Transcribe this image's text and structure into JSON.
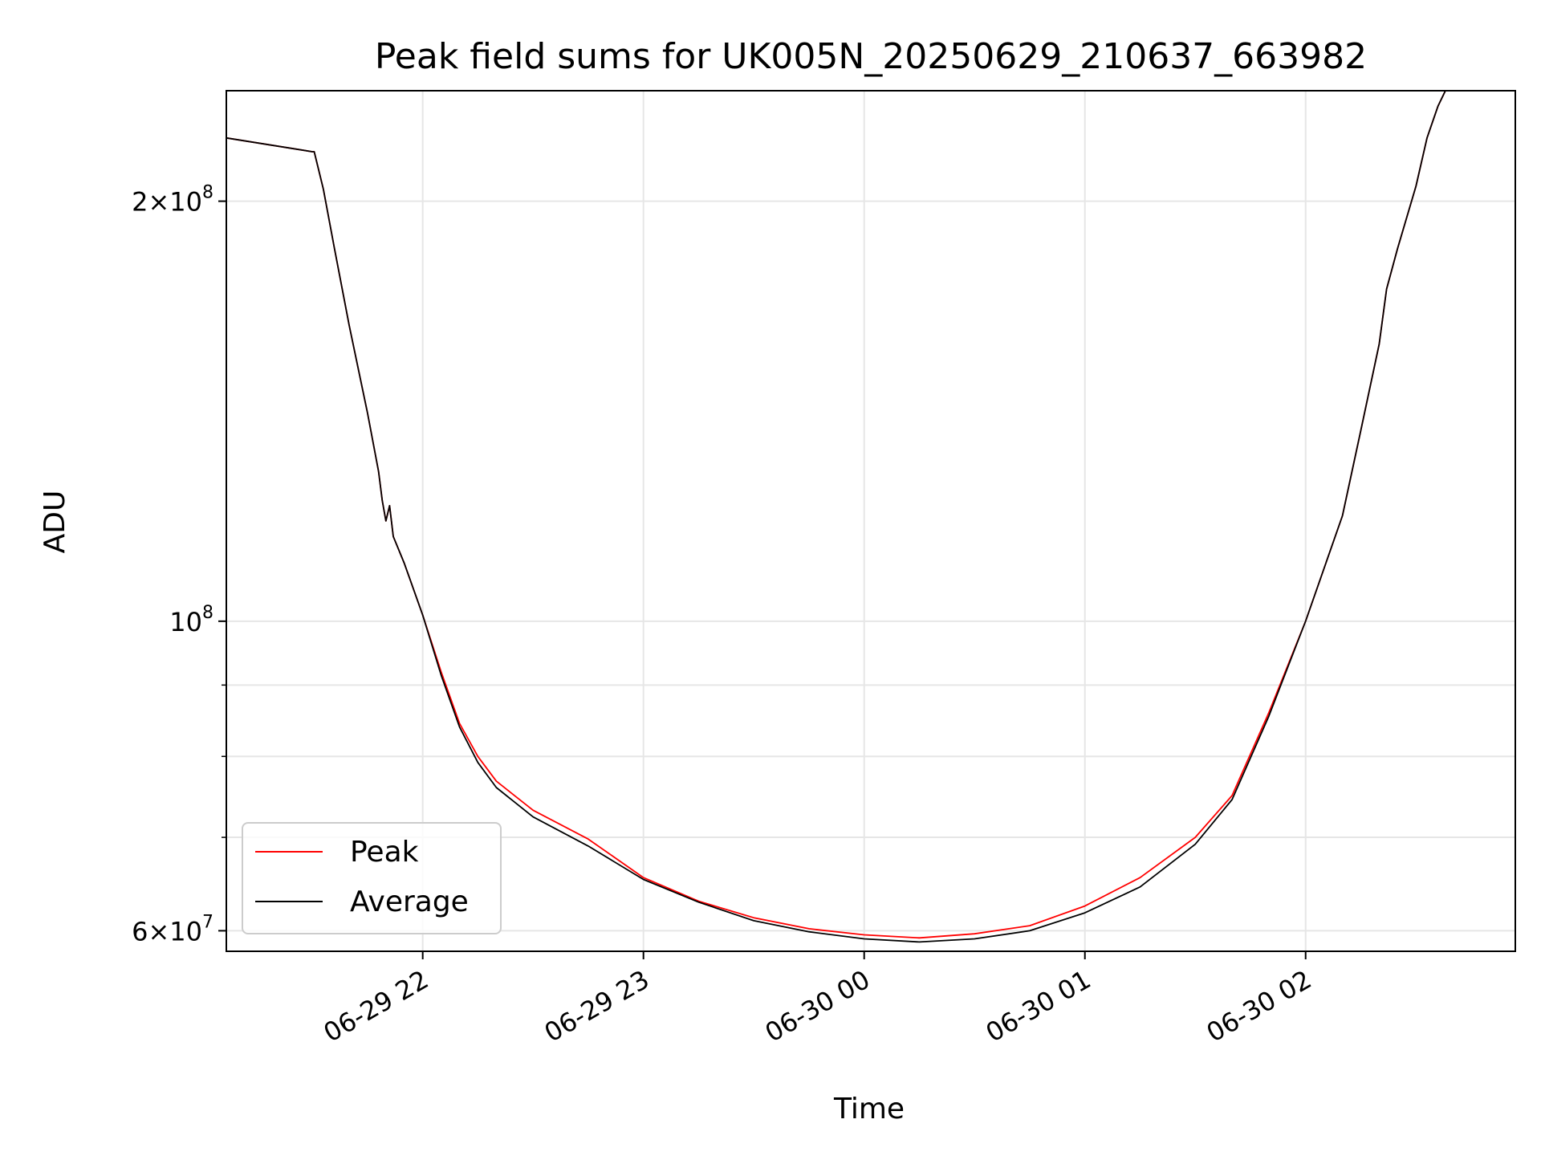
{
  "chart_data": {
    "type": "line",
    "title": "Peak field sums for UK005N_20250629_210637_663982",
    "xlabel": "Time",
    "ylabel": "ADU",
    "yscale": "log",
    "grid": true,
    "legend_position": "lower-left",
    "xlim": [
      "2025-06-29 21:06:37",
      "2025-06-30 02:57:00"
    ],
    "ylim": [
      58000000,
      240000000
    ],
    "xticks": [
      {
        "value": "2025-06-29 22:00",
        "label": "06-29 22"
      },
      {
        "value": "2025-06-29 23:00",
        "label": "06-29 23"
      },
      {
        "value": "2025-06-30 00:00",
        "label": "06-30 00"
      },
      {
        "value": "2025-06-30 01:00",
        "label": "06-30 01"
      },
      {
        "value": "2025-06-30 02:00",
        "label": "06-30 02"
      }
    ],
    "yticks_major": [
      {
        "value": 60000000,
        "label_base": "6",
        "label_exp": "7"
      },
      {
        "value": 100000000,
        "label_base": "10",
        "label_exp": "8"
      },
      {
        "value": 200000000,
        "label_base": "2",
        "label_exp": "8"
      }
    ],
    "yticks_minor": [
      70000000,
      80000000,
      90000000
    ],
    "series": [
      {
        "name": "Peak",
        "color": "#ff0000",
        "x": [
          "2025-06-29 21:06:37",
          "2025-06-29 21:30:00",
          "2025-06-29 21:30:30",
          "2025-06-29 21:33:00",
          "2025-06-29 21:36:00",
          "2025-06-29 21:40:00",
          "2025-06-29 21:45:00",
          "2025-06-29 21:48:00",
          "2025-06-29 21:49:00",
          "2025-06-29 21:50:00",
          "2025-06-29 21:51:00",
          "2025-06-29 21:52:00",
          "2025-06-29 21:55:00",
          "2025-06-29 22:00:00",
          "2025-06-29 22:05:00",
          "2025-06-29 22:10:00",
          "2025-06-29 22:15:00",
          "2025-06-29 22:20:00",
          "2025-06-29 22:30:00",
          "2025-06-29 22:45:00",
          "2025-06-29 23:00:00",
          "2025-06-29 23:15:00",
          "2025-06-29 23:30:00",
          "2025-06-29 23:45:00",
          "2025-06-30 00:00:00",
          "2025-06-30 00:15:00",
          "2025-06-30 00:30:00",
          "2025-06-30 00:45:00",
          "2025-06-30 01:00:00",
          "2025-06-30 01:15:00",
          "2025-06-30 01:30:00",
          "2025-06-30 01:40:00",
          "2025-06-30 01:50:00",
          "2025-06-30 02:00:00",
          "2025-06-30 02:10:00",
          "2025-06-30 02:15:00",
          "2025-06-30 02:20:00",
          "2025-06-30 02:22:00",
          "2025-06-30 02:25:00",
          "2025-06-30 02:30:00",
          "2025-06-30 02:33:00",
          "2025-06-30 02:36:00",
          "2025-06-30 02:38:00",
          "2025-06-30 02:40:00"
        ],
        "y": [
          222000000,
          217000000,
          217000000,
          204000000,
          185000000,
          163000000,
          141000000,
          128000000,
          122000000,
          118000000,
          121000000,
          115000000,
          110000000,
          101000000,
          92000000,
          84500000,
          80000000,
          76800000,
          73200000,
          69800000,
          65500000,
          63000000,
          61300000,
          60200000,
          59600000,
          59300000,
          59700000,
          60500000,
          62500000,
          65500000,
          70000000,
          75000000,
          86000000,
          100000000,
          119000000,
          137000000,
          158000000,
          173000000,
          185000000,
          205000000,
          222000000,
          234000000,
          240000000,
          240000000
        ]
      },
      {
        "name": "Average",
        "color": "#000000",
        "x": [
          "2025-06-29 21:06:37",
          "2025-06-29 21:30:00",
          "2025-06-29 21:30:30",
          "2025-06-29 21:33:00",
          "2025-06-29 21:36:00",
          "2025-06-29 21:40:00",
          "2025-06-29 21:45:00",
          "2025-06-29 21:48:00",
          "2025-06-29 21:49:00",
          "2025-06-29 21:50:00",
          "2025-06-29 21:51:00",
          "2025-06-29 21:52:00",
          "2025-06-29 21:55:00",
          "2025-06-29 22:00:00",
          "2025-06-29 22:05:00",
          "2025-06-29 22:10:00",
          "2025-06-29 22:15:00",
          "2025-06-29 22:20:00",
          "2025-06-29 22:30:00",
          "2025-06-29 22:45:00",
          "2025-06-29 23:00:00",
          "2025-06-29 23:15:00",
          "2025-06-29 23:30:00",
          "2025-06-29 23:45:00",
          "2025-06-30 00:00:00",
          "2025-06-30 00:15:00",
          "2025-06-30 00:30:00",
          "2025-06-30 00:45:00",
          "2025-06-30 01:00:00",
          "2025-06-30 01:15:00",
          "2025-06-30 01:30:00",
          "2025-06-30 01:40:00",
          "2025-06-30 01:50:00",
          "2025-06-30 02:00:00",
          "2025-06-30 02:10:00",
          "2025-06-30 02:15:00",
          "2025-06-30 02:20:00",
          "2025-06-30 02:22:00",
          "2025-06-30 02:25:00",
          "2025-06-30 02:30:00",
          "2025-06-30 02:33:00",
          "2025-06-30 02:36:00",
          "2025-06-30 02:38:00",
          "2025-06-30 02:40:00"
        ],
        "y": [
          222000000,
          217000000,
          217000000,
          204000000,
          185000000,
          163000000,
          141000000,
          128000000,
          122000000,
          118000000,
          121000000,
          115000000,
          110000000,
          101000000,
          91500000,
          84000000,
          79200000,
          76000000,
          72400000,
          69000000,
          65300000,
          62900000,
          61000000,
          59900000,
          59200000,
          58900000,
          59200000,
          60000000,
          61800000,
          64500000,
          69200000,
          74500000,
          85500000,
          100000000,
          119000000,
          137000000,
          158000000,
          173000000,
          185000000,
          205000000,
          222000000,
          234000000,
          240000000,
          240000000
        ]
      }
    ]
  }
}
